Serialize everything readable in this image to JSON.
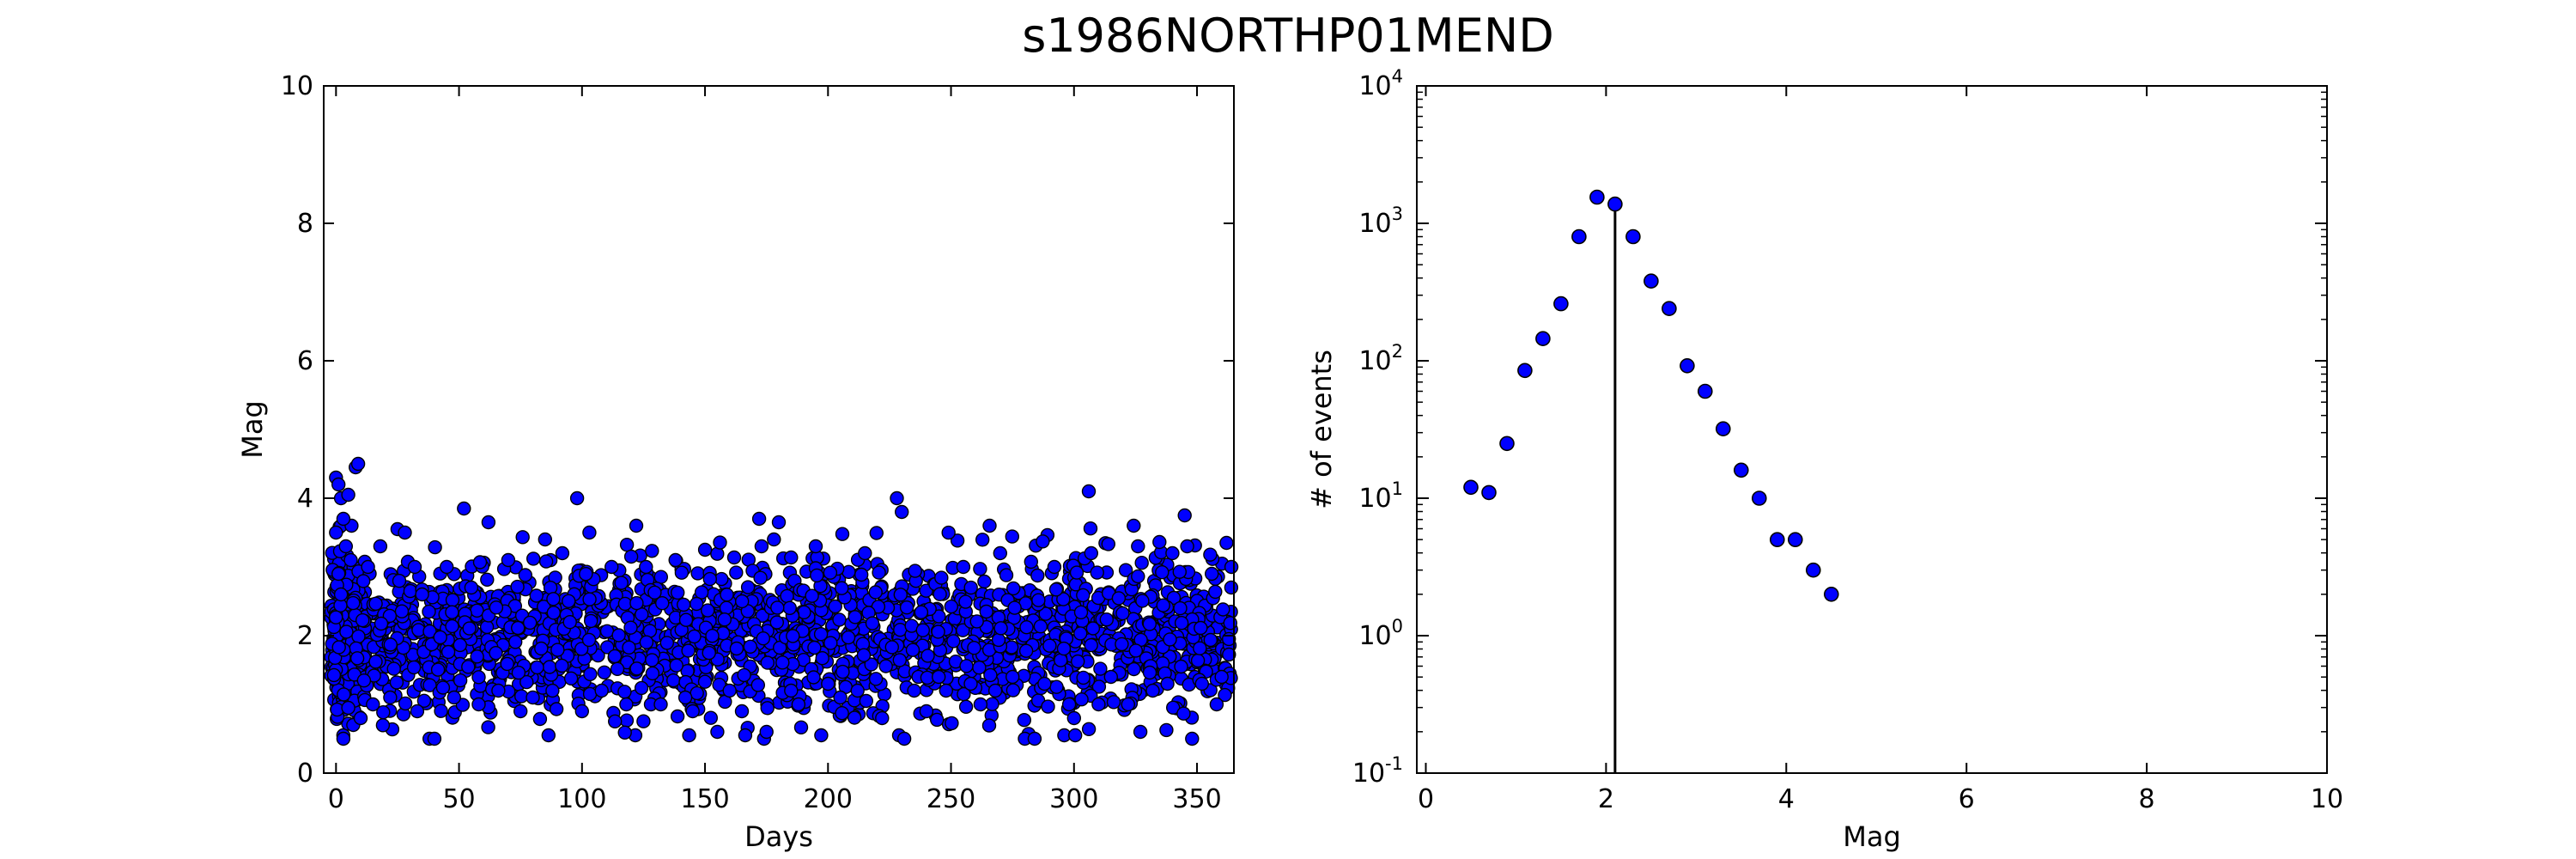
{
  "title": "s1986NORTHP01MEND",
  "colors": {
    "marker": "#0000ff",
    "marker_edge": "#000000",
    "axes": "#000000",
    "background": "#ffffff"
  },
  "chart_data": [
    {
      "type": "scatter",
      "title": "",
      "xlabel": "Days",
      "ylabel": "Mag",
      "xlim": [
        -5,
        365
      ],
      "ylim": [
        0,
        10
      ],
      "xticks": [
        0,
        50,
        100,
        150,
        200,
        250,
        300,
        350
      ],
      "xtick_labels": [
        "0",
        "50",
        "100",
        "150",
        "200",
        "250",
        "300",
        "350"
      ],
      "yticks": [
        0,
        2,
        4,
        6,
        8,
        10
      ],
      "ytick_labels": [
        "0",
        "2",
        "4",
        "6",
        "8",
        "10"
      ],
      "points": [
        [
          0,
          4.3
        ],
        [
          1,
          4.2
        ],
        [
          2,
          4.0
        ],
        [
          5,
          4.05
        ],
        [
          8,
          4.45
        ],
        [
          9,
          4.5
        ],
        [
          3,
          3.7
        ],
        [
          0,
          3.5
        ],
        [
          4,
          3.3
        ],
        [
          6,
          3.1
        ],
        [
          1,
          2.9
        ],
        [
          2,
          2.6
        ],
        [
          3,
          0.5
        ],
        [
          7,
          0.7
        ],
        [
          10,
          0.8
        ],
        [
          5,
          0.95
        ],
        [
          13,
          3.0
        ],
        [
          18,
          3.3
        ],
        [
          25,
          3.55
        ],
        [
          28,
          3.5
        ],
        [
          32,
          3.0
        ],
        [
          35,
          2.6
        ],
        [
          38,
          0.5
        ],
        [
          40,
          0.5
        ],
        [
          45,
          3.0
        ],
        [
          52,
          3.85
        ],
        [
          55,
          2.7
        ],
        [
          62,
          3.65
        ],
        [
          70,
          3.1
        ],
        [
          75,
          0.9
        ],
        [
          85,
          3.4
        ],
        [
          92,
          3.2
        ],
        [
          98,
          4.0
        ],
        [
          100,
          0.9
        ],
        [
          103,
          3.5
        ],
        [
          112,
          3.0
        ],
        [
          120,
          3.15
        ],
        [
          126,
          3.0
        ],
        [
          128,
          1.0
        ],
        [
          132,
          1.0
        ],
        [
          138,
          3.1
        ],
        [
          145,
          0.9
        ],
        [
          150,
          3.25
        ],
        [
          155,
          0.6
        ],
        [
          165,
          0.9
        ],
        [
          172,
          3.7
        ],
        [
          173,
          3.3
        ],
        [
          174,
          0.5
        ],
        [
          175,
          0.6
        ],
        [
          178,
          3.4
        ],
        [
          180,
          3.65
        ],
        [
          188,
          1.0
        ],
        [
          195,
          3.3
        ],
        [
          205,
          1.1
        ],
        [
          215,
          3.2
        ],
        [
          222,
          0.8
        ],
        [
          228,
          4.0
        ],
        [
          230,
          3.8
        ],
        [
          231,
          0.5
        ],
        [
          240,
          0.9
        ],
        [
          248,
          1.2
        ],
        [
          255,
          3.0
        ],
        [
          262,
          1.0
        ],
        [
          270,
          3.2
        ],
        [
          280,
          0.5
        ],
        [
          284,
          0.5
        ],
        [
          292,
          3.0
        ],
        [
          298,
          1.0
        ],
        [
          300,
          0.8
        ],
        [
          306,
          4.1
        ],
        [
          307,
          3.2
        ],
        [
          310,
          1.0
        ],
        [
          322,
          1.0
        ],
        [
          326,
          3.3
        ],
        [
          327,
          0.6
        ],
        [
          340,
          3.2
        ],
        [
          345,
          3.75
        ],
        [
          346,
          3.3
        ],
        [
          348,
          0.5
        ],
        [
          356,
          2.9
        ],
        [
          358,
          1.0
        ],
        [
          362,
          3.35
        ],
        [
          15,
          1.0
        ],
        [
          22,
          1.1
        ],
        [
          33,
          0.9
        ],
        [
          48,
          1.1
        ],
        [
          58,
          1.0
        ],
        [
          66,
          1.2
        ],
        [
          80,
          1.1
        ],
        [
          88,
          1.2
        ],
        [
          108,
          1.2
        ],
        [
          118,
          1.0
        ],
        [
          142,
          1.1
        ],
        [
          160,
          1.2
        ],
        [
          185,
          1.2
        ],
        [
          200,
          1.3
        ],
        [
          212,
          1.2
        ],
        [
          235,
          1.2
        ],
        [
          245,
          1.4
        ],
        [
          258,
          1.3
        ],
        [
          268,
          1.2
        ],
        [
          275,
          1.4
        ],
        [
          288,
          1.3
        ],
        [
          315,
          1.4
        ],
        [
          332,
          1.2
        ],
        [
          338,
          1.3
        ],
        [
          352,
          1.3
        ],
        [
          360,
          1.4
        ],
        [
          364,
          3.0
        ]
      ],
      "dense_band": {
        "center": 2.0,
        "spread": 0.55,
        "count": 2200,
        "x_range": [
          -2,
          364
        ]
      }
    },
    {
      "type": "scatter",
      "scale": "log-y",
      "title": "",
      "xlabel": "Mag",
      "ylabel": "# of events",
      "xlim": [
        -0.1,
        10
      ],
      "ylim_exponents": [
        -1,
        4
      ],
      "xticks": [
        0,
        2,
        4,
        6,
        8,
        10
      ],
      "xtick_labels": [
        "0",
        "2",
        "4",
        "6",
        "8",
        "10"
      ],
      "ytick_exponents": [
        -1,
        0,
        1,
        2,
        3,
        4
      ],
      "ytick_base": "10",
      "ytick_powers": [
        "-1",
        "0",
        "1",
        "2",
        "3",
        "4"
      ],
      "x": [
        0.5,
        0.7,
        0.9,
        1.1,
        1.3,
        1.5,
        1.7,
        1.9,
        2.1,
        2.3,
        2.5,
        2.7,
        2.9,
        3.1,
        3.3,
        3.5,
        3.7,
        3.9,
        4.1,
        4.3,
        4.5
      ],
      "y": [
        12,
        11,
        25,
        85,
        145,
        260,
        800,
        1550,
        1380,
        800,
        380,
        240,
        92,
        60,
        32,
        16,
        10,
        5,
        5,
        3,
        2
      ],
      "vertical_line_x": 2.1
    }
  ]
}
